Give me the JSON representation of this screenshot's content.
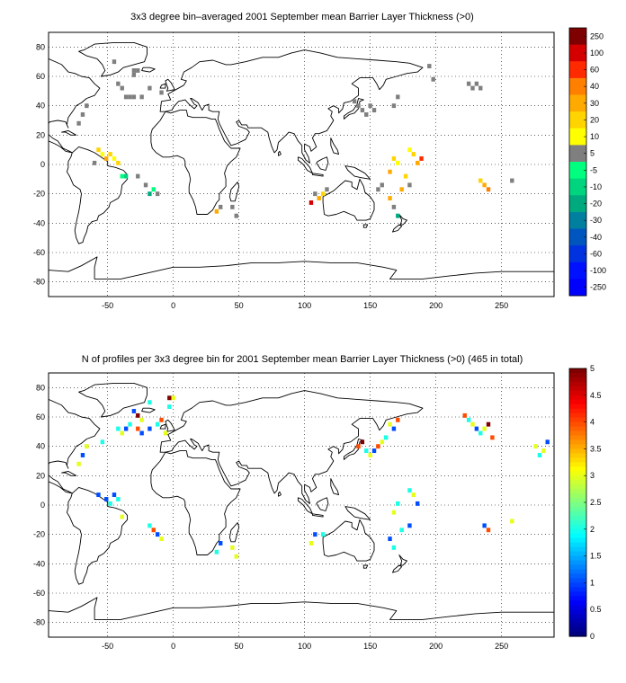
{
  "panels": [
    {
      "title": "3x3 degree bin–averaged 2001 September mean Barrier Layer Thickness (>0)",
      "x_ticks": [
        "-50",
        "0",
        "50",
        "100",
        "150",
        "200",
        "250"
      ],
      "y_ticks": [
        "80",
        "60",
        "40",
        "20",
        "0",
        "-20",
        "-40",
        "-60",
        "-80"
      ],
      "colorbar": {
        "labels": [
          "250",
          "100",
          "60",
          "40",
          "30",
          "20",
          "10",
          "5",
          "-5",
          "-10",
          "-20",
          "-30",
          "-40",
          "-60",
          "-100",
          "-250"
        ],
        "colors": [
          "#7f0000",
          "#d40000",
          "#ff2a00",
          "#ff7f00",
          "#ffaa00",
          "#ffd400",
          "#ffff00",
          "#7f7f7f",
          "#00ff7f",
          "#00d47f",
          "#00aa7f",
          "#007f9f",
          "#0055bf",
          "#0033df",
          "#0011ff",
          "#0000ff"
        ]
      }
    },
    {
      "title": "N of profiles per 3x3 degree bin for 2001 September mean Barrier Layer Thickness (>0) (465 in total)",
      "x_ticks": [
        "-50",
        "0",
        "50",
        "100",
        "150",
        "200",
        "250"
      ],
      "y_ticks": [
        "80",
        "60",
        "40",
        "20",
        "0",
        "-20",
        "-40",
        "-60",
        "-80"
      ],
      "colorbar": {
        "labels": [
          "5",
          "4.5",
          "4",
          "3.5",
          "3",
          "2.5",
          "2",
          "1.5",
          "1",
          "0.5",
          "0"
        ]
      }
    }
  ],
  "chart_data": [
    {
      "type": "heatmap",
      "title": "3x3 degree bin–averaged 2001 September mean Barrier Layer Thickness (>0)",
      "xlim": [
        -95,
        290
      ],
      "ylim": [
        -90,
        90
      ],
      "grid": true,
      "cells": [
        [
          -30,
          64,
          "#7f7f7f"
        ],
        [
          -27,
          64,
          "#7f7f7f"
        ],
        [
          -30,
          61,
          "#7f7f7f"
        ],
        [
          -36,
          46,
          "#7f7f7f"
        ],
        [
          -33,
          46,
          "#7f7f7f"
        ],
        [
          -30,
          46,
          "#7f7f7f"
        ],
        [
          -24,
          46,
          "#7f7f7f"
        ],
        [
          -18,
          52,
          "#7f7f7f"
        ],
        [
          -9,
          49,
          "#7f7f7f"
        ],
        [
          -66,
          40,
          "#7f7f7f"
        ],
        [
          -69,
          34,
          "#7f7f7f"
        ],
        [
          -72,
          28,
          "#7f7f7f"
        ],
        [
          -42,
          55,
          "#7f7f7f"
        ],
        [
          -39,
          52,
          "#7f7f7f"
        ],
        [
          -45,
          70,
          "#7f7f7f"
        ],
        [
          -57,
          10,
          "#ffd400"
        ],
        [
          -54,
          7,
          "#ffff00"
        ],
        [
          -51,
          4,
          "#ffaa00"
        ],
        [
          -48,
          7,
          "#ffd400"
        ],
        [
          -45,
          4,
          "#ffff00"
        ],
        [
          -42,
          1,
          "#ffd400"
        ],
        [
          -39,
          -8,
          "#00ff7f"
        ],
        [
          -36,
          -8,
          "#00d47f"
        ],
        [
          -18,
          -20,
          "#00aa7f"
        ],
        [
          -15,
          -17,
          "#00ff7f"
        ],
        [
          -12,
          -20,
          "#7f7f7f"
        ],
        [
          -21,
          -14,
          "#7f7f7f"
        ],
        [
          -27,
          -8,
          "#7f7f7f"
        ],
        [
          -60,
          1,
          "#7f7f7f"
        ],
        [
          33,
          -32,
          "#ffaa00"
        ],
        [
          36,
          -29,
          "#7f7f7f"
        ],
        [
          45,
          -29,
          "#7f7f7f"
        ],
        [
          48,
          -35,
          "#7f7f7f"
        ],
        [
          105,
          -26,
          "#d40000"
        ],
        [
          108,
          -20,
          "#7f7f7f"
        ],
        [
          111,
          -23,
          "#ffaa00"
        ],
        [
          114,
          -20,
          "#ffd400"
        ],
        [
          117,
          -17,
          "#7f7f7f"
        ],
        [
          138,
          43,
          "#7f7f7f"
        ],
        [
          141,
          40,
          "#7f7f7f"
        ],
        [
          144,
          37,
          "#7f7f7f"
        ],
        [
          147,
          34,
          "#7f7f7f"
        ],
        [
          150,
          40,
          "#7f7f7f"
        ],
        [
          153,
          37,
          "#7f7f7f"
        ],
        [
          168,
          40,
          "#7f7f7f"
        ],
        [
          171,
          46,
          "#7f7f7f"
        ],
        [
          165,
          -5,
          "#ffaa00"
        ],
        [
          168,
          4,
          "#ffd400"
        ],
        [
          171,
          1,
          "#ffff00"
        ],
        [
          180,
          10,
          "#ffff00"
        ],
        [
          183,
          7,
          "#ffd400"
        ],
        [
          186,
          1,
          "#ffaa00"
        ],
        [
          189,
          4,
          "#ff2a00"
        ],
        [
          177,
          -8,
          "#ffd400"
        ],
        [
          180,
          -14,
          "#7f7f7f"
        ],
        [
          174,
          -17,
          "#ffaa00"
        ],
        [
          165,
          -23,
          "#ffaa00"
        ],
        [
          168,
          -29,
          "#7f7f7f"
        ],
        [
          171,
          -35,
          "#00aa7f"
        ],
        [
          195,
          67,
          "#7f7f7f"
        ],
        [
          198,
          58,
          "#7f7f7f"
        ],
        [
          225,
          55,
          "#7f7f7f"
        ],
        [
          228,
          52,
          "#7f7f7f"
        ],
        [
          231,
          55,
          "#7f7f7f"
        ],
        [
          234,
          52,
          "#7f7f7f"
        ],
        [
          237,
          -14,
          "#ffaa00"
        ],
        [
          240,
          -17,
          "#ff7f00"
        ],
        [
          234,
          -11,
          "#ffd400"
        ],
        [
          156,
          -17,
          "#7f7f7f"
        ],
        [
          159,
          -14,
          "#7f7f7f"
        ],
        [
          258,
          -11,
          "#7f7f7f"
        ]
      ]
    },
    {
      "type": "heatmap",
      "title": "N of profiles per 3x3 degree bin for 2001 September mean Barrier Layer Thickness (>0) (465 in total)",
      "xlim": [
        -95,
        290
      ],
      "ylim": [
        -90,
        90
      ],
      "grid": true,
      "cells": [
        [
          -30,
          64,
          1
        ],
        [
          -27,
          61,
          5
        ],
        [
          -24,
          58,
          3
        ],
        [
          -33,
          55,
          2
        ],
        [
          -36,
          52,
          1
        ],
        [
          -39,
          49,
          3
        ],
        [
          -42,
          52,
          2
        ],
        [
          -27,
          52,
          4
        ],
        [
          -24,
          49,
          1
        ],
        [
          -18,
          52,
          1
        ],
        [
          -12,
          55,
          2
        ],
        [
          -9,
          58,
          4
        ],
        [
          -6,
          49,
          3
        ],
        [
          -3,
          67,
          2
        ],
        [
          0,
          73,
          3
        ],
        [
          -3,
          73,
          5
        ],
        [
          -18,
          70,
          2
        ],
        [
          -54,
          43,
          2
        ],
        [
          -66,
          40,
          3
        ],
        [
          -69,
          34,
          1
        ],
        [
          -72,
          28,
          3
        ],
        [
          -57,
          7,
          1
        ],
        [
          -51,
          4,
          1
        ],
        [
          -48,
          1,
          2
        ],
        [
          -45,
          7,
          1
        ],
        [
          -42,
          4,
          2
        ],
        [
          -39,
          -8,
          3
        ],
        [
          -15,
          -17,
          4
        ],
        [
          -12,
          -20,
          1
        ],
        [
          -18,
          -14,
          2
        ],
        [
          -9,
          -23,
          3
        ],
        [
          36,
          -26,
          1
        ],
        [
          33,
          -32,
          2
        ],
        [
          45,
          -29,
          3
        ],
        [
          48,
          -35,
          3
        ],
        [
          105,
          -26,
          3
        ],
        [
          108,
          -20,
          1
        ],
        [
          114,
          -20,
          2
        ],
        [
          141,
          40,
          4
        ],
        [
          144,
          43,
          5
        ],
        [
          147,
          37,
          2
        ],
        [
          150,
          34,
          3
        ],
        [
          153,
          37,
          1
        ],
        [
          156,
          40,
          4
        ],
        [
          159,
          43,
          3
        ],
        [
          162,
          46,
          2
        ],
        [
          168,
          52,
          1
        ],
        [
          171,
          58,
          4
        ],
        [
          165,
          55,
          3
        ],
        [
          168,
          -5,
          3
        ],
        [
          171,
          1,
          2
        ],
        [
          180,
          10,
          2
        ],
        [
          183,
          7,
          3
        ],
        [
          186,
          1,
          1
        ],
        [
          180,
          -14,
          1
        ],
        [
          174,
          -17,
          2
        ],
        [
          165,
          -23,
          1
        ],
        [
          168,
          -29,
          2
        ],
        [
          222,
          61,
          4
        ],
        [
          225,
          58,
          2
        ],
        [
          228,
          55,
          3
        ],
        [
          231,
          52,
          1
        ],
        [
          234,
          49,
          2
        ],
        [
          237,
          52,
          3
        ],
        [
          240,
          55,
          5
        ],
        [
          243,
          46,
          4
        ],
        [
          237,
          -14,
          1
        ],
        [
          240,
          -17,
          4
        ],
        [
          258,
          -11,
          3
        ],
        [
          276,
          40,
          3
        ],
        [
          279,
          34,
          2
        ],
        [
          282,
          37,
          3
        ],
        [
          285,
          43,
          1
        ]
      ]
    }
  ]
}
